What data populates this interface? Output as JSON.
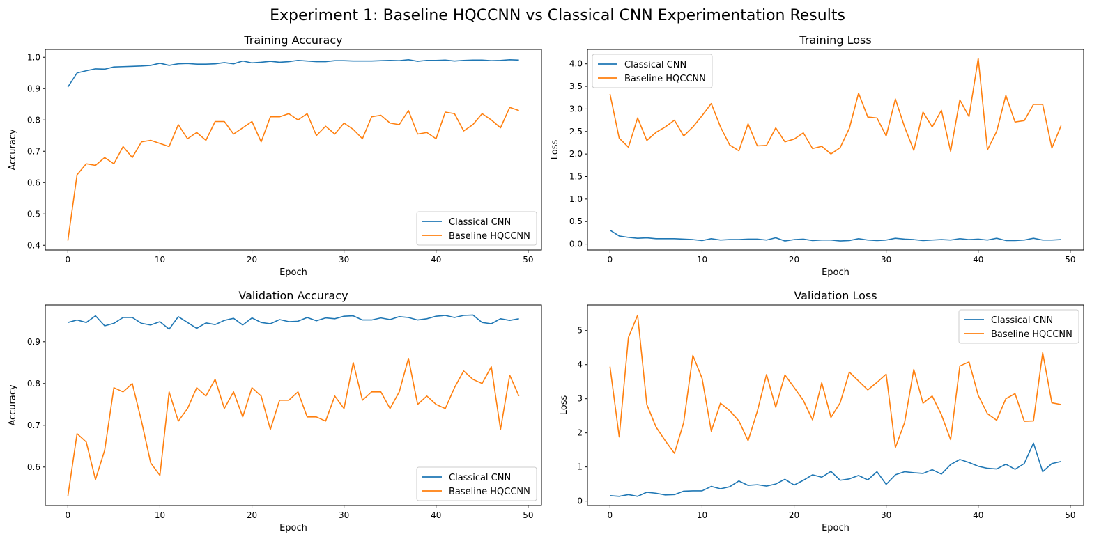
{
  "figure": {
    "title": "Experiment 1: Baseline HQCCNN vs Classical CNN Experimentation Results"
  },
  "colors": {
    "classical": "#1f77b4",
    "hqccnn": "#ff7f0e",
    "axis": "#000000"
  },
  "chart_data": [
    {
      "type": "line",
      "title": "Training Accuracy",
      "xlabel": "Epoch",
      "ylabel": "Accuracy",
      "xlim": [
        -2.45,
        51.45
      ],
      "ylim": [
        0.385,
        1.025
      ],
      "xticks": [
        0,
        10,
        20,
        30,
        40,
        50
      ],
      "yticks": [
        0.4,
        0.5,
        0.6,
        0.7,
        0.8,
        0.9,
        1.0
      ],
      "ytick_decimals": 1,
      "legend_position": "lower-right",
      "grid": false,
      "series": [
        {
          "name": "Classical CNN",
          "color": "#1f77b4",
          "values": [
            0.905,
            0.95,
            0.957,
            0.963,
            0.962,
            0.969,
            0.97,
            0.971,
            0.972,
            0.974,
            0.981,
            0.974,
            0.979,
            0.98,
            0.978,
            0.978,
            0.979,
            0.983,
            0.979,
            0.988,
            0.982,
            0.984,
            0.987,
            0.984,
            0.986,
            0.99,
            0.988,
            0.986,
            0.986,
            0.989,
            0.989,
            0.988,
            0.988,
            0.988,
            0.989,
            0.99,
            0.989,
            0.992,
            0.987,
            0.99,
            0.99,
            0.991,
            0.988,
            0.99,
            0.991,
            0.991,
            0.989,
            0.99,
            0.992,
            0.991
          ]
        },
        {
          "name": "Baseline HQCCNN",
          "color": "#ff7f0e",
          "values": [
            0.415,
            0.625,
            0.66,
            0.655,
            0.68,
            0.66,
            0.715,
            0.68,
            0.73,
            0.735,
            0.725,
            0.715,
            0.785,
            0.74,
            0.76,
            0.735,
            0.795,
            0.795,
            0.755,
            0.775,
            0.795,
            0.73,
            0.81,
            0.81,
            0.82,
            0.8,
            0.82,
            0.75,
            0.78,
            0.755,
            0.79,
            0.77,
            0.74,
            0.81,
            0.815,
            0.79,
            0.785,
            0.83,
            0.755,
            0.76,
            0.74,
            0.825,
            0.82,
            0.765,
            0.785,
            0.82,
            0.8,
            0.775,
            0.84,
            0.83
          ]
        }
      ]
    },
    {
      "type": "line",
      "title": "Training Loss",
      "xlabel": "Epoch",
      "ylabel": "Loss",
      "xlim": [
        -2.45,
        51.45
      ],
      "ylim": [
        -0.13,
        4.32
      ],
      "xticks": [
        0,
        10,
        20,
        30,
        40,
        50
      ],
      "yticks": [
        0.0,
        0.5,
        1.0,
        1.5,
        2.0,
        2.5,
        3.0,
        3.5,
        4.0
      ],
      "ytick_decimals": 1,
      "legend_position": "upper-left",
      "grid": false,
      "series": [
        {
          "name": "Classical CNN",
          "color": "#1f77b4",
          "values": [
            0.31,
            0.18,
            0.15,
            0.13,
            0.14,
            0.12,
            0.12,
            0.12,
            0.11,
            0.1,
            0.08,
            0.12,
            0.09,
            0.1,
            0.1,
            0.11,
            0.11,
            0.09,
            0.14,
            0.07,
            0.1,
            0.11,
            0.08,
            0.09,
            0.09,
            0.07,
            0.08,
            0.12,
            0.09,
            0.08,
            0.09,
            0.13,
            0.11,
            0.1,
            0.08,
            0.09,
            0.1,
            0.09,
            0.12,
            0.1,
            0.11,
            0.09,
            0.13,
            0.08,
            0.08,
            0.09,
            0.13,
            0.09,
            0.09,
            0.1
          ]
        },
        {
          "name": "Baseline HQCCNN",
          "color": "#ff7f0e",
          "values": [
            3.33,
            2.35,
            2.15,
            2.8,
            2.3,
            2.48,
            2.6,
            2.75,
            2.4,
            2.6,
            2.85,
            3.12,
            2.6,
            2.2,
            2.07,
            2.67,
            2.18,
            2.19,
            2.58,
            2.27,
            2.33,
            2.47,
            2.12,
            2.17,
            2.0,
            2.14,
            2.57,
            3.35,
            2.82,
            2.8,
            2.4,
            3.22,
            2.6,
            2.08,
            2.93,
            2.6,
            2.97,
            2.06,
            3.2,
            2.83,
            4.12,
            2.09,
            2.5,
            3.3,
            2.71,
            2.74,
            3.1,
            3.1,
            2.13,
            2.63
          ]
        }
      ]
    },
    {
      "type": "line",
      "title": "Validation Accuracy",
      "xlabel": "Epoch",
      "ylabel": "Accuracy",
      "xlim": [
        -2.45,
        51.45
      ],
      "ylim": [
        0.508,
        0.988
      ],
      "xticks": [
        0,
        10,
        20,
        30,
        40,
        50
      ],
      "yticks": [
        0.6,
        0.7,
        0.8,
        0.9
      ],
      "ytick_decimals": 1,
      "legend_position": "lower-right",
      "grid": false,
      "series": [
        {
          "name": "Classical CNN",
          "color": "#1f77b4",
          "values": [
            0.946,
            0.952,
            0.946,
            0.962,
            0.938,
            0.944,
            0.958,
            0.958,
            0.944,
            0.94,
            0.948,
            0.93,
            0.96,
            0.946,
            0.932,
            0.945,
            0.941,
            0.951,
            0.956,
            0.94,
            0.957,
            0.946,
            0.943,
            0.953,
            0.948,
            0.949,
            0.958,
            0.95,
            0.957,
            0.955,
            0.961,
            0.962,
            0.952,
            0.952,
            0.957,
            0.953,
            0.96,
            0.958,
            0.952,
            0.955,
            0.961,
            0.963,
            0.958,
            0.963,
            0.964,
            0.946,
            0.943,
            0.955,
            0.951,
            0.955
          ]
        },
        {
          "name": "Baseline HQCCNN",
          "color": "#ff7f0e",
          "values": [
            0.53,
            0.68,
            0.66,
            0.57,
            0.64,
            0.79,
            0.78,
            0.8,
            0.71,
            0.61,
            0.58,
            0.78,
            0.71,
            0.74,
            0.79,
            0.77,
            0.81,
            0.74,
            0.78,
            0.72,
            0.79,
            0.77,
            0.69,
            0.76,
            0.76,
            0.78,
            0.72,
            0.72,
            0.71,
            0.77,
            0.74,
            0.85,
            0.76,
            0.78,
            0.78,
            0.74,
            0.78,
            0.86,
            0.75,
            0.77,
            0.75,
            0.74,
            0.79,
            0.83,
            0.81,
            0.8,
            0.84,
            0.69,
            0.82,
            0.77
          ]
        }
      ]
    },
    {
      "type": "line",
      "title": "Validation Loss",
      "xlabel": "Epoch",
      "ylabel": "Loss",
      "xlim": [
        -2.45,
        51.45
      ],
      "ylim": [
        -0.13,
        5.75
      ],
      "xticks": [
        0,
        10,
        20,
        30,
        40,
        50
      ],
      "yticks": [
        0,
        1,
        2,
        3,
        4,
        5
      ],
      "ytick_decimals": 0,
      "legend_position": "upper-right",
      "grid": false,
      "series": [
        {
          "name": "Classical CNN",
          "color": "#1f77b4",
          "values": [
            0.16,
            0.14,
            0.19,
            0.14,
            0.26,
            0.23,
            0.18,
            0.19,
            0.29,
            0.3,
            0.3,
            0.43,
            0.36,
            0.42,
            0.59,
            0.46,
            0.48,
            0.44,
            0.5,
            0.64,
            0.47,
            0.61,
            0.77,
            0.7,
            0.87,
            0.61,
            0.65,
            0.75,
            0.62,
            0.86,
            0.49,
            0.77,
            0.86,
            0.83,
            0.81,
            0.92,
            0.79,
            1.07,
            1.22,
            1.13,
            1.02,
            0.96,
            0.94,
            1.08,
            0.93,
            1.1,
            1.7,
            0.86,
            1.1,
            1.16
          ]
        },
        {
          "name": "Baseline HQCCNN",
          "color": "#ff7f0e",
          "values": [
            3.94,
            1.88,
            4.8,
            5.45,
            2.83,
            2.17,
            1.77,
            1.4,
            2.3,
            4.27,
            3.6,
            2.05,
            2.87,
            2.65,
            2.35,
            1.77,
            2.63,
            3.71,
            2.75,
            3.7,
            3.33,
            2.95,
            2.38,
            3.47,
            2.45,
            2.88,
            3.78,
            3.52,
            3.26,
            3.48,
            3.72,
            1.57,
            2.3,
            3.86,
            2.87,
            3.08,
            2.53,
            1.8,
            3.96,
            4.08,
            3.1,
            2.56,
            2.37,
            3.0,
            3.15,
            2.34,
            2.35,
            4.35,
            2.88,
            2.83
          ]
        }
      ]
    }
  ]
}
